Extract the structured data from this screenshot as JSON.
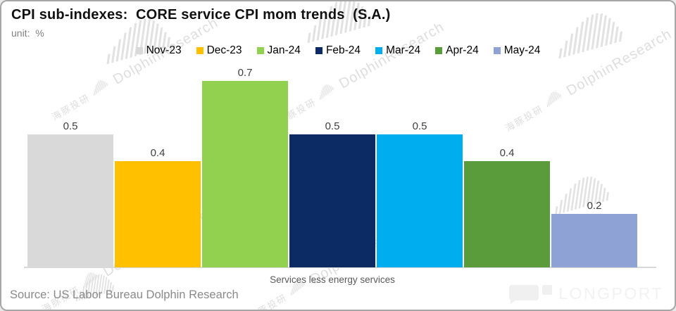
{
  "title": "CPI sub-indexes:  CORE service CPI mom trends  (S.A.)",
  "unit_label": "unit:  %",
  "chart_data": {
    "type": "bar",
    "title": "CPI sub-indexes: CORE service CPI mom trends (S.A.)",
    "unit": "%",
    "categories": [
      "Services less energy services"
    ],
    "series": [
      {
        "name": "Nov-23",
        "color": "#d9d9d9",
        "values": [
          0.5
        ]
      },
      {
        "name": "Dec-23",
        "color": "#ffc000",
        "values": [
          0.4
        ]
      },
      {
        "name": "Jan-24",
        "color": "#92d050",
        "values": [
          0.7
        ]
      },
      {
        "name": "Feb-24",
        "color": "#0c2a63",
        "values": [
          0.5
        ]
      },
      {
        "name": "Mar-24",
        "color": "#00aeef",
        "values": [
          0.5
        ]
      },
      {
        "name": "Apr-24",
        "color": "#5a9b3c",
        "values": [
          0.4
        ]
      },
      {
        "name": "May-24",
        "color": "#8ea2d6",
        "values": [
          0.2
        ]
      }
    ],
    "ylim": [
      0,
      0.75
    ],
    "grid": false,
    "legend_position": "top-center",
    "data_labels": true,
    "label_color": "#3f3f3f",
    "axis_line_color": "#d9d9d9"
  },
  "source": "Source: US Labor Bureau Dolphin Research",
  "watermark": {
    "cjk": "海豚投研",
    "brand": "DolphinResearch"
  },
  "footer": {
    "brand": "LONGPORT"
  }
}
